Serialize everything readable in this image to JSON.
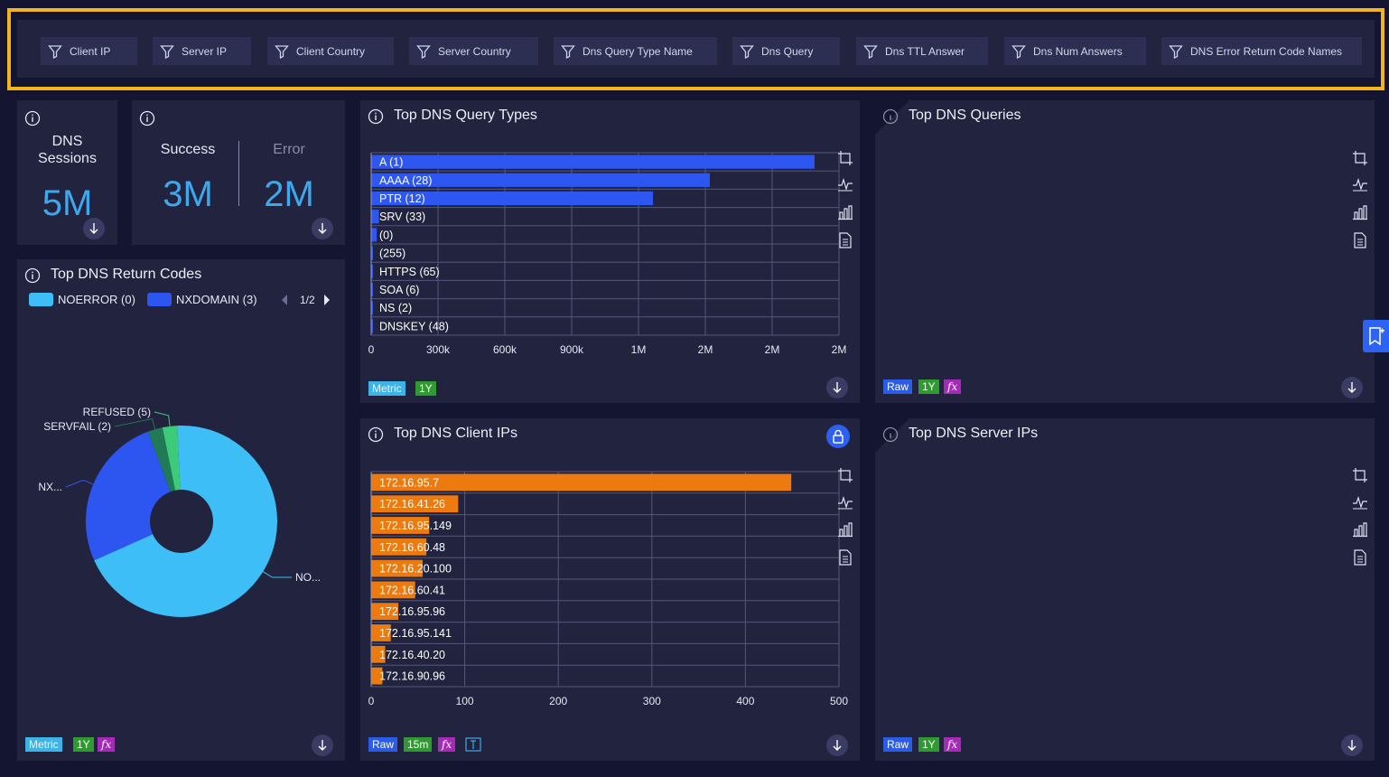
{
  "filters": [
    {
      "label": "Client IP"
    },
    {
      "label": "Server IP"
    },
    {
      "label": "Client Country"
    },
    {
      "label": "Server Country"
    },
    {
      "label": "Dns Query Type Name"
    },
    {
      "label": "Dns Query"
    },
    {
      "label": "Dns TTL Answer"
    },
    {
      "label": "Dns Num Answers"
    },
    {
      "label": "DNS Error Return Code Names"
    }
  ],
  "sessions": {
    "label_line1": "DNS",
    "label_line2": "Sessions",
    "value": "5M"
  },
  "success_error": {
    "success_label": "Success",
    "success_value": "3M",
    "error_label": "Error",
    "error_value": "2M"
  },
  "return_codes": {
    "title": "Top DNS Return Codes",
    "legend": [
      {
        "name": "NOERROR (0)",
        "color": "#3dbef6"
      },
      {
        "name": "NXDOMAIN (3)",
        "color": "#2d56f0"
      }
    ],
    "pager": "1/2",
    "tags": {
      "metric": "Metric",
      "range": "1Y",
      "fx": "fx"
    },
    "chart_data": {
      "type": "pie",
      "donut": true,
      "slices": [
        {
          "label": "NO...",
          "value": 69,
          "color": "#3dbef6"
        },
        {
          "label": "NX...",
          "value": 26,
          "color": "#2d56f0"
        },
        {
          "label": "SERVFAIL (2)",
          "value": 2.5,
          "color": "#1f7a55"
        },
        {
          "label": "REFUSED (5)",
          "value": 2.5,
          "color": "#3ccb7a"
        }
      ]
    }
  },
  "query_types": {
    "title": "Top DNS Query Types",
    "tags": {
      "metric": "Metric",
      "range": "1Y"
    },
    "chart_data": {
      "type": "bar",
      "orientation": "horizontal",
      "categories": [
        "A (1)",
        "AAAA (28)",
        "PTR (12)",
        "SRV (33)",
        "(0)",
        "(255)",
        "HTTPS (65)",
        "SOA (6)",
        "NS (2)",
        "DNSKEY (48)"
      ],
      "values": [
        1990000,
        1520000,
        1265000,
        35000,
        25000,
        8000,
        6000,
        1500,
        800,
        400
      ],
      "xlim": [
        0,
        2100000
      ],
      "ticks": [
        0,
        300000,
        600000,
        900000,
        1200000,
        1500000,
        1800000,
        2100000
      ],
      "tick_labels": [
        "0",
        "300k",
        "600k",
        "900k",
        "1M",
        "2M",
        "2M",
        "2M"
      ],
      "color": "#2e57f2"
    }
  },
  "queries": {
    "title": "Top DNS Queries",
    "tags": {
      "raw": "Raw",
      "range": "1Y",
      "fx": "fx"
    }
  },
  "client_ips": {
    "title": "Top DNS Client IPs",
    "tags": {
      "raw": "Raw",
      "range": "15m",
      "fx": "fx"
    },
    "chart_data": {
      "type": "bar",
      "orientation": "horizontal",
      "categories": [
        "172.16.95.7",
        "172.16.41.26",
        "172.16.95.149",
        "172.16.60.48",
        "172.16.20.100",
        "172.16.60.41",
        "172.16.95.96",
        "172.16.95.141",
        "172.16.40.20",
        "172.16.90.96"
      ],
      "values": [
        449,
        93,
        62,
        59,
        55,
        47,
        29,
        21,
        15,
        12
      ],
      "xlim": [
        0,
        500
      ],
      "ticks": [
        0,
        100,
        200,
        300,
        400,
        500
      ],
      "tick_labels": [
        "0",
        "100",
        "200",
        "300",
        "400",
        "500"
      ],
      "color": "#ec7a0e"
    }
  },
  "server_ips": {
    "title": "Top DNS Server IPs",
    "tags": {
      "raw": "Raw",
      "range": "1Y",
      "fx": "fx"
    }
  }
}
